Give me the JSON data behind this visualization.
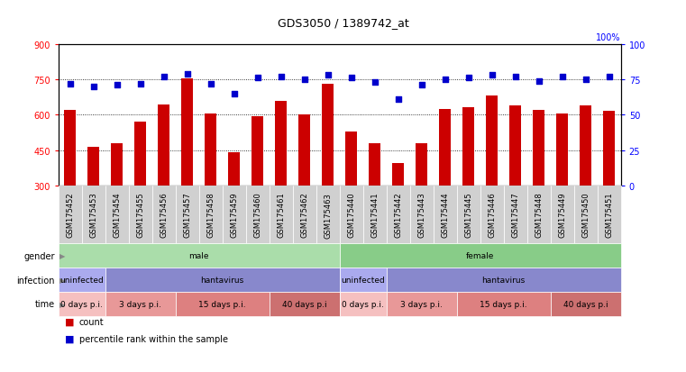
{
  "title": "GDS3050 / 1389742_at",
  "samples": [
    "GSM175452",
    "GSM175453",
    "GSM175454",
    "GSM175455",
    "GSM175456",
    "GSM175457",
    "GSM175458",
    "GSM175459",
    "GSM175460",
    "GSM175461",
    "GSM175462",
    "GSM175463",
    "GSM175440",
    "GSM175441",
    "GSM175442",
    "GSM175443",
    "GSM175444",
    "GSM175445",
    "GSM175446",
    "GSM175447",
    "GSM175448",
    "GSM175449",
    "GSM175450",
    "GSM175451"
  ],
  "counts": [
    620,
    465,
    480,
    570,
    645,
    755,
    605,
    440,
    595,
    660,
    600,
    730,
    530,
    480,
    395,
    480,
    625,
    630,
    680,
    640,
    620,
    605,
    640,
    615
  ],
  "percentiles": [
    72,
    70,
    71,
    72,
    77,
    79,
    72,
    65,
    76,
    77,
    75,
    78,
    76,
    73,
    61,
    71,
    75,
    76,
    78,
    77,
    74,
    77,
    75,
    77
  ],
  "bar_color": "#cc0000",
  "dot_color": "#0000cc",
  "ylim_left": [
    300,
    900
  ],
  "ylim_right": [
    0,
    100
  ],
  "yticks_left": [
    300,
    450,
    600,
    750,
    900
  ],
  "yticks_right": [
    0,
    25,
    50,
    75,
    100
  ],
  "grid_values": [
    450,
    600,
    750
  ],
  "gender_row": {
    "label": "gender",
    "segments": [
      {
        "text": "male",
        "start": 0,
        "end": 12,
        "color": "#aaddaa"
      },
      {
        "text": "female",
        "start": 12,
        "end": 24,
        "color": "#88cc88"
      }
    ]
  },
  "infection_row": {
    "label": "infection",
    "segments": [
      {
        "text": "uninfected",
        "start": 0,
        "end": 2,
        "color": "#aaaaee"
      },
      {
        "text": "hantavirus",
        "start": 2,
        "end": 12,
        "color": "#8888cc"
      },
      {
        "text": "uninfected",
        "start": 12,
        "end": 14,
        "color": "#aaaaee"
      },
      {
        "text": "hantavirus",
        "start": 14,
        "end": 24,
        "color": "#8888cc"
      }
    ]
  },
  "time_row": {
    "label": "time",
    "segments": [
      {
        "text": "0 days p.i.",
        "start": 0,
        "end": 2,
        "color": "#f5c0c0"
      },
      {
        "text": "3 days p.i.",
        "start": 2,
        "end": 5,
        "color": "#e89898"
      },
      {
        "text": "15 days p.i.",
        "start": 5,
        "end": 9,
        "color": "#dd8080"
      },
      {
        "text": "40 days p.i",
        "start": 9,
        "end": 12,
        "color": "#cc7070"
      },
      {
        "text": "0 days p.i.",
        "start": 12,
        "end": 14,
        "color": "#f5c0c0"
      },
      {
        "text": "3 days p.i.",
        "start": 14,
        "end": 17,
        "color": "#e89898"
      },
      {
        "text": "15 days p.i.",
        "start": 17,
        "end": 21,
        "color": "#dd8080"
      },
      {
        "text": "40 days p.i",
        "start": 21,
        "end": 24,
        "color": "#cc7070"
      }
    ]
  },
  "bg_color": "#ffffff",
  "plot_bg_color": "#ffffff",
  "xlabel_bg_color": "#d0d0d0",
  "label_fontsize": 7,
  "tick_fontsize": 7,
  "sample_fontsize": 6
}
